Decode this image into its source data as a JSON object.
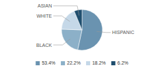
{
  "chart_data": {
    "type": "pie",
    "categories": [
      "HISPANIC",
      "BLACK",
      "WHITE",
      "ASIAN"
    ],
    "values": [
      53.4,
      22.2,
      18.2,
      6.2
    ],
    "value_labels": [
      "53.4%",
      "22.2%",
      "18.2%",
      "6.2%"
    ],
    "colors": [
      "#6a93b0",
      "#8cb0c8",
      "#c5d8e8",
      "#1f4e6e"
    ],
    "legend": "bottom"
  }
}
